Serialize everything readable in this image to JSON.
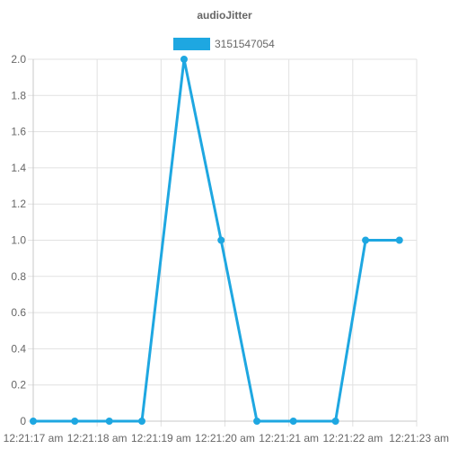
{
  "chart_data": {
    "type": "line",
    "title": "audioJitter",
    "xlabel": "",
    "ylabel": "",
    "x_ticks": [
      "12:21:17 am",
      "12:21:18 am",
      "12:21:19 am",
      "12:21:20 am",
      "12:21:21 am",
      "12:21:22 am",
      "12:21:23 am"
    ],
    "x_range": [
      0,
      6
    ],
    "ylim": [
      0,
      2.0
    ],
    "y_ticks": [
      "0",
      "0.2",
      "0.4",
      "0.6",
      "0.8",
      "1.0",
      "1.2",
      "1.4",
      "1.6",
      "1.8",
      "2.0"
    ],
    "grid": true,
    "legend_position": "top",
    "series": [
      {
        "name": "3151547054",
        "color": "#1ea7e1",
        "points": [
          {
            "x": 0.0,
            "y": 0
          },
          {
            "x": 0.65,
            "y": 0
          },
          {
            "x": 1.19,
            "y": 0
          },
          {
            "x": 1.7,
            "y": 0
          },
          {
            "x": 2.36,
            "y": 2
          },
          {
            "x": 2.94,
            "y": 1
          },
          {
            "x": 3.5,
            "y": 0
          },
          {
            "x": 4.07,
            "y": 0
          },
          {
            "x": 4.73,
            "y": 0
          },
          {
            "x": 5.2,
            "y": 1
          },
          {
            "x": 5.73,
            "y": 1
          }
        ]
      }
    ]
  }
}
